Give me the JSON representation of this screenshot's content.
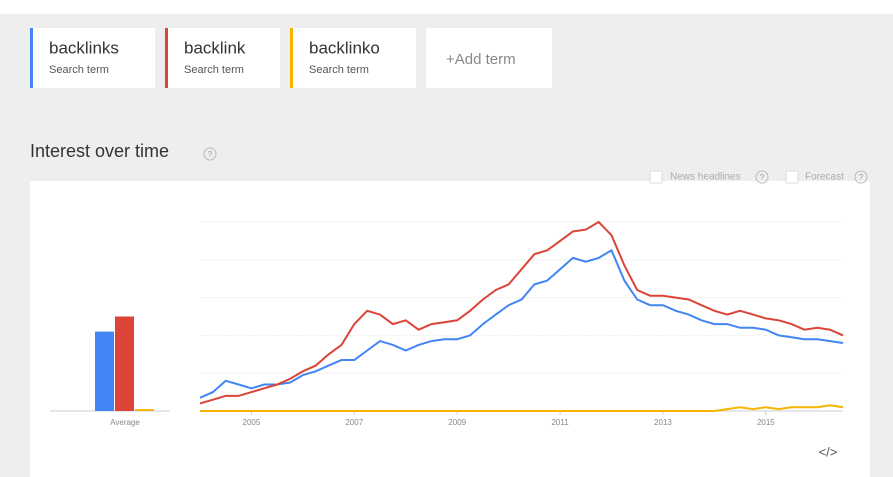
{
  "search_term_captions": [
    "Search term",
    "Search term",
    "Search term"
  ],
  "add_term": "+Add term",
  "section_title": "Interest over time",
  "help_icon": "?",
  "options": [
    "News headlines",
    "Forecast"
  ],
  "embed_label": "</>",
  "chart_data": {
    "type": "line",
    "average_label": "Average",
    "x": [
      2004,
      2004.25,
      2004.5,
      2004.75,
      2005,
      2005.25,
      2005.5,
      2005.75,
      2006,
      2006.25,
      2006.5,
      2006.75,
      2007,
      2007.25,
      2007.5,
      2007.75,
      2008,
      2008.25,
      2008.5,
      2008.75,
      2009,
      2009.25,
      2009.5,
      2009.75,
      2010,
      2010.25,
      2010.5,
      2010.75,
      2011,
      2011.25,
      2011.5,
      2011.75,
      2012,
      2012.25,
      2012.5,
      2012.75,
      2013,
      2013.25,
      2013.5,
      2013.75,
      2014,
      2014.25,
      2014.5,
      2014.75,
      2015,
      2015.25,
      2015.5,
      2015.75,
      2016,
      2016.25,
      2016.5
    ],
    "xlim": [
      2004,
      2016.5
    ],
    "xticks": [
      2005,
      2007,
      2009,
      2011,
      2013,
      2015
    ],
    "ylim": [
      0,
      100
    ],
    "yticks": [
      0,
      20,
      40,
      60,
      80,
      100
    ],
    "grid": true,
    "series": [
      {
        "name": "backlinks",
        "color": "#4285f4",
        "average": 42,
        "values": [
          7,
          10,
          16,
          14,
          12,
          14,
          14,
          15,
          19,
          21,
          24,
          27,
          27,
          32,
          37,
          35,
          32,
          35,
          37,
          38,
          38,
          40,
          46,
          51,
          56,
          59,
          67,
          69,
          75,
          81,
          79,
          81,
          85,
          69,
          59,
          56,
          56,
          53,
          51,
          48,
          46,
          46,
          44,
          44,
          43,
          40,
          39,
          38,
          38,
          37,
          36
        ]
      },
      {
        "name": "backlink",
        "color": "#db4437",
        "average": 50,
        "values": [
          4,
          6,
          8,
          8,
          10,
          12,
          14,
          17,
          21,
          24,
          30,
          35,
          46,
          53,
          51,
          46,
          48,
          43,
          46,
          47,
          48,
          53,
          59,
          64,
          67,
          75,
          83,
          85,
          90,
          95,
          96,
          100,
          93,
          77,
          64,
          61,
          61,
          60,
          59,
          56,
          53,
          51,
          53,
          51,
          49,
          48,
          46,
          43,
          44,
          43,
          40
        ]
      },
      {
        "name": "backlinko",
        "color": "#f4b400",
        "average": 1,
        "values": [
          0,
          0,
          0,
          0,
          0,
          0,
          0,
          0,
          0,
          0,
          0,
          0,
          0,
          0,
          0,
          0,
          0,
          0,
          0,
          0,
          0,
          0,
          0,
          0,
          0,
          0,
          0,
          0,
          0,
          0,
          0,
          0,
          0,
          0,
          0,
          0,
          0,
          0,
          0,
          0,
          0,
          1,
          2,
          1,
          2,
          1,
          2,
          2,
          2,
          3,
          2
        ]
      }
    ]
  }
}
